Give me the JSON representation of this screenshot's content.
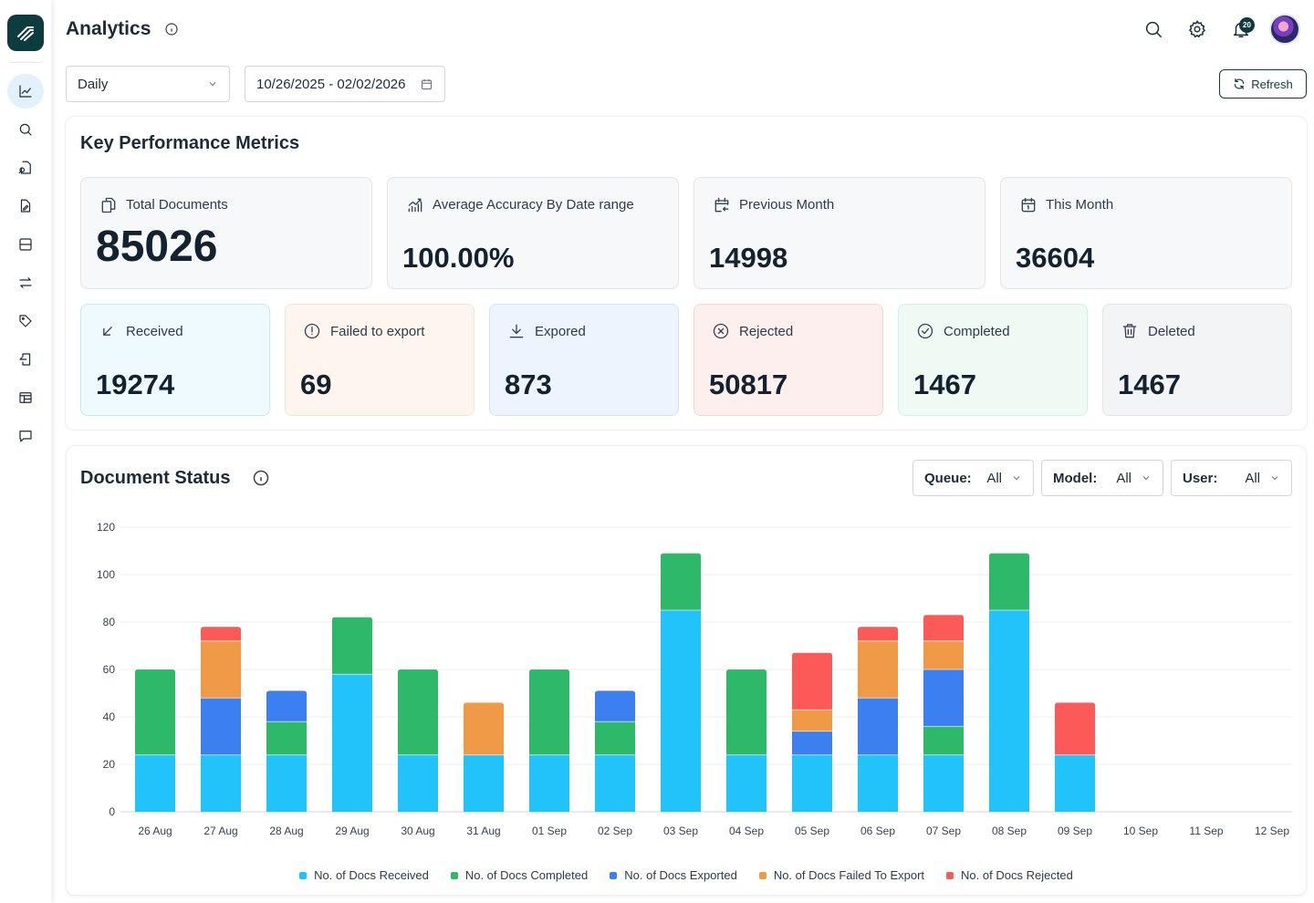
{
  "header": {
    "title": "Analytics",
    "notification_count": "20"
  },
  "sidebar": {
    "items": [
      {
        "name": "analytics",
        "icon": "line-chart-icon",
        "active": true
      },
      {
        "name": "search",
        "icon": "search-icon",
        "active": false
      },
      {
        "name": "document-search",
        "icon": "document-search-icon",
        "active": false
      },
      {
        "name": "document-edit",
        "icon": "document-edit-icon",
        "active": false
      },
      {
        "name": "layout",
        "icon": "layout-icon",
        "active": false
      },
      {
        "name": "transfer",
        "icon": "arrows-swap-icon",
        "active": false
      },
      {
        "name": "tags",
        "icon": "tag-icon",
        "active": false
      },
      {
        "name": "export",
        "icon": "document-export-icon",
        "active": false
      },
      {
        "name": "table",
        "icon": "table-icon",
        "active": false
      },
      {
        "name": "messages",
        "icon": "chat-icon",
        "active": false
      }
    ]
  },
  "toolbar": {
    "period": "Daily",
    "date_range": "10/26/2025 - 02/02/2026",
    "refresh_label": "Refresh"
  },
  "kpi": {
    "title": "Key Performance Metrics",
    "cards": [
      {
        "label": "Total Documents",
        "value": "85026",
        "icon": "documents-icon"
      },
      {
        "label": "Average Accuracy By Date range",
        "value": "100.00%",
        "icon": "trend-chart-icon"
      },
      {
        "label": "Previous Month",
        "value": "14998",
        "icon": "calendar-back-icon"
      },
      {
        "label": "This Month",
        "value": "36604",
        "icon": "calendar-icon"
      }
    ],
    "status_cards": [
      {
        "label": "Received",
        "value": "19274",
        "icon": "arrow-down-left-icon",
        "bg": "#eefafd",
        "border": "#bfeaf6"
      },
      {
        "label": "Failed to export",
        "value": "69",
        "icon": "alert-circle-icon",
        "bg": "#fef6ee",
        "border": "#f7e3cf"
      },
      {
        "label": "Expored",
        "value": "873",
        "icon": "download-icon",
        "bg": "#eef4fd",
        "border": "#d3e2f7"
      },
      {
        "label": "Rejected",
        "value": "50817",
        "icon": "x-circle-icon",
        "bg": "#fdefee",
        "border": "#f6d4d1"
      },
      {
        "label": "Completed",
        "value": "1467",
        "icon": "check-circle-icon",
        "bg": "#eefaf3",
        "border": "#d4f0de"
      },
      {
        "label": "Deleted",
        "value": "1467",
        "icon": "trash-icon",
        "bg": "#f3f4f6",
        "border": "#e1e4e8"
      }
    ]
  },
  "status": {
    "title": "Document Status",
    "filters": [
      {
        "label": "Queue:",
        "value": "All"
      },
      {
        "label": "Model:",
        "value": "All"
      },
      {
        "label": "User:",
        "value": "All"
      }
    ]
  },
  "chart_data": {
    "type": "bar",
    "stacked": true,
    "categories": [
      "26 Aug",
      "27 Aug",
      "28 Aug",
      "29 Aug",
      "30 Aug",
      "31 Aug",
      "01 Sep",
      "02 Sep",
      "03 Sep",
      "04 Sep",
      "05 Sep",
      "06 Sep",
      "07 Sep",
      "08 Sep",
      "09 Sep",
      "10 Sep",
      "11 Sep",
      "12 Sep"
    ],
    "series": [
      {
        "name": "No. of Docs Received",
        "color": "#22c3fb",
        "values": [
          24,
          24,
          24,
          58,
          24,
          24,
          24,
          24,
          85,
          24,
          24,
          24,
          24,
          85,
          24,
          0,
          0,
          0
        ]
      },
      {
        "name": "No. of Docs Completed",
        "color": "#2eb86a",
        "values": [
          36,
          0,
          14,
          24,
          36,
          0,
          36,
          14,
          24,
          36,
          0,
          0,
          12,
          24,
          0,
          0,
          0,
          0
        ]
      },
      {
        "name": "No. of Docs Exported",
        "color": "#3b7ff0",
        "values": [
          0,
          24,
          13,
          0,
          0,
          0,
          0,
          13,
          0,
          0,
          10,
          24,
          24,
          0,
          0,
          0,
          0,
          0
        ]
      },
      {
        "name": "No. of Docs Failed To Export",
        "color": "#f09947",
        "values": [
          0,
          24,
          0,
          0,
          0,
          22,
          0,
          0,
          0,
          0,
          9,
          24,
          12,
          0,
          0,
          0,
          0,
          0
        ]
      },
      {
        "name": "No. of Docs Rejected",
        "color": "#fb5a58",
        "values": [
          0,
          6,
          0,
          0,
          0,
          0,
          0,
          0,
          0,
          0,
          24,
          6,
          11,
          0,
          22,
          0,
          0,
          0
        ]
      }
    ],
    "yticks": [
      0,
      20,
      40,
      60,
      80,
      100,
      120
    ],
    "ylim": [
      0,
      120
    ],
    "grid": true,
    "legend": "bottom-center"
  }
}
